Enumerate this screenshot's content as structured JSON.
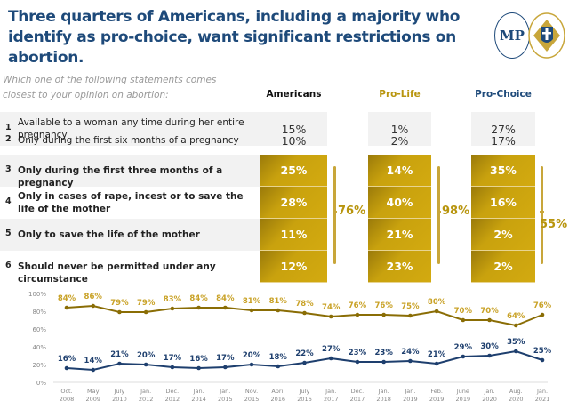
{
  "title": "Three quarters of Americans, including a majority who identify as pro-choice, want significant restrictions on abortion.",
  "logo": {
    "text": "MP"
  },
  "table": {
    "question": "Which one of the following statements comes closest to your opinion on abortion:",
    "columns": [
      "Americans",
      "Pro-Life",
      "Pro-Choice"
    ],
    "rows": [
      {
        "num": "1",
        "label": "Available to a woman any time during her entire pregnancy",
        "values": [
          "15%",
          "1%",
          "27%"
        ]
      },
      {
        "num": "2",
        "label": "Only during the first six months of a pregnancy",
        "values": [
          "10%",
          "2%",
          "17%"
        ]
      },
      {
        "num": "3",
        "label": "Only during the first three months of a pregnancy",
        "values": [
          "25%",
          "14%",
          "35%"
        ]
      },
      {
        "num": "4",
        "label": "Only in cases of rape, incest or to save the life of the mother",
        "values": [
          "28%",
          "40%",
          "16%"
        ]
      },
      {
        "num": "5",
        "label": "Only to save the life of the mother",
        "values": [
          "11%",
          "21%",
          "2%"
        ]
      },
      {
        "num": "6",
        "label": "Should never be permitted under any circumstance",
        "values": [
          "12%",
          "23%",
          "2%"
        ]
      }
    ],
    "totals": [
      "76%",
      "98%",
      "55%"
    ]
  },
  "colors": {
    "gold": "#b8950e",
    "blue": "#1e3f6e",
    "title": "#1e4a7a"
  },
  "chart_data": {
    "type": "line",
    "categories": [
      "Oct. 2008",
      "May 2009",
      "July 2010",
      "Jan. 2012",
      "Dec. 2012",
      "Jan. 2014",
      "Jan. 2015",
      "Nov. 2015",
      "April 2016",
      "July 2016",
      "Jan. 2017",
      "Dec. 2017",
      "Jan. 2018",
      "Jan. 2019",
      "Feb. 2019",
      "June 2019",
      "Jan. 2020",
      "Aug. 2020",
      "Jan. 2021"
    ],
    "series": [
      {
        "color": "#8a6d05",
        "values": [
          84,
          86,
          79,
          79,
          83,
          84,
          84,
          81,
          81,
          78,
          74,
          76,
          76,
          75,
          80,
          70,
          70,
          64,
          76
        ]
      },
      {
        "color": "#1e3f6e",
        "values": [
          16,
          14,
          21,
          20,
          17,
          16,
          17,
          20,
          18,
          22,
          27,
          23,
          23,
          24,
          21,
          29,
          30,
          35,
          25
        ]
      }
    ],
    "yticks": [
      "0%",
      "20%",
      "40%",
      "60%",
      "80%",
      "100%"
    ],
    "ylim": [
      0,
      100
    ],
    "grid": false
  }
}
